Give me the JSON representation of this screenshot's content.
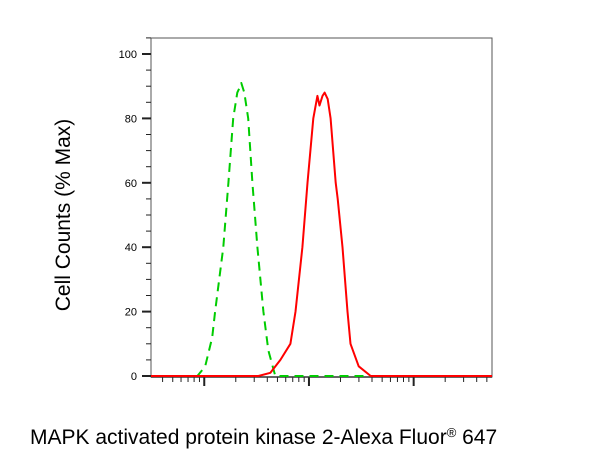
{
  "chart_data": {
    "type": "line",
    "xlabel": "MAPK activated protein kinase 2-Alexa Fluor",
    "xlabel_superscript": "®",
    "xlabel_suffix": " 647",
    "ylabel": "Cell Counts (% Max)",
    "x_scale": "log",
    "x_tick_labels_shown": false,
    "xlim": [
      3.1,
      5600
    ],
    "ylim": [
      0,
      105
    ],
    "y_ticks": [
      0,
      20,
      40,
      60,
      80,
      100
    ],
    "grid": false,
    "legend": "none",
    "series": [
      {
        "color": "#00cc00",
        "style": "dashed",
        "x": [
          8.6,
          10.2,
          11.9,
          12.7,
          15.2,
          17.0,
          18.9,
          20.7,
          22.1,
          22.6,
          24.1,
          26.3,
          28.8,
          32.2,
          36.7,
          40.9,
          47.7
        ],
        "y": [
          0,
          3,
          12,
          20,
          40,
          60,
          80,
          88,
          90,
          91,
          88,
          80,
          60,
          40,
          20,
          8,
          0
        ]
      },
      {
        "color": "#ff0000",
        "style": "solid",
        "x": [
          32.9,
          42.8,
          53.4,
          66.5,
          74.4,
          86.6,
          96.9,
          110.0,
          120.5,
          126.0,
          134.8,
          140.9,
          150.9,
          161.1,
          180.2,
          188.3,
          209.1,
          233.3,
          249.5,
          298.5,
          388.6
        ],
        "y": [
          0,
          1,
          5,
          10,
          20,
          40,
          60,
          80,
          87,
          84,
          87,
          88,
          86,
          80,
          60,
          55,
          40,
          20,
          10,
          3,
          0
        ]
      }
    ]
  }
}
